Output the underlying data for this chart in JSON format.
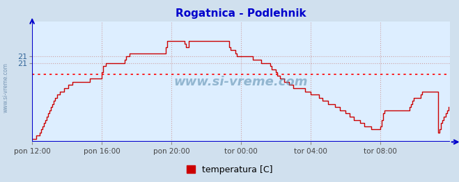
{
  "title": "Rogatnica - Podlehnik",
  "background_color": "#d0e0ee",
  "plot_bg_color": "#ddeeff",
  "line_color": "#cc0000",
  "avg_line_color": "#ff0000",
  "grid_color": "#cc9999",
  "grid_vcolor": "#cc9999",
  "title_color": "#0000cc",
  "legend_label": "temperatura [C]",
  "legend_color": "#cc0000",
  "ylim_min": 18.5,
  "ylim_max": 22.3,
  "avg_value": 20.65,
  "ytick_values": [
    21.2,
    21.0
  ],
  "ytick_labels": [
    "21",
    "21"
  ],
  "x_tick_labels": [
    "pon 12:00",
    "pon 16:00",
    "pon 20:00",
    "tor 00:00",
    "tor 04:00",
    "tor 08:00"
  ],
  "x_tick_positions": [
    0,
    48,
    96,
    144,
    192,
    240
  ],
  "total_points": 288,
  "temps": [
    18.6,
    18.6,
    18.6,
    18.7,
    18.7,
    18.8,
    18.9,
    19.0,
    19.1,
    19.2,
    19.3,
    19.4,
    19.5,
    19.6,
    19.7,
    19.8,
    19.9,
    20.0,
    20.0,
    20.1,
    20.1,
    20.1,
    20.2,
    20.2,
    20.2,
    20.3,
    20.3,
    20.3,
    20.4,
    20.4,
    20.4,
    20.4,
    20.4,
    20.4,
    20.4,
    20.4,
    20.4,
    20.4,
    20.4,
    20.4,
    20.5,
    20.5,
    20.5,
    20.5,
    20.5,
    20.5,
    20.5,
    20.5,
    20.7,
    20.9,
    20.9,
    21.0,
    21.0,
    21.0,
    21.0,
    21.0,
    21.0,
    21.0,
    21.0,
    21.0,
    21.0,
    21.0,
    21.0,
    21.0,
    21.1,
    21.2,
    21.2,
    21.3,
    21.3,
    21.3,
    21.3,
    21.3,
    21.3,
    21.3,
    21.3,
    21.3,
    21.3,
    21.3,
    21.3,
    21.3,
    21.3,
    21.3,
    21.3,
    21.3,
    21.3,
    21.3,
    21.3,
    21.3,
    21.3,
    21.3,
    21.3,
    21.3,
    21.5,
    21.7,
    21.7,
    21.7,
    21.7,
    21.7,
    21.7,
    21.7,
    21.7,
    21.7,
    21.7,
    21.7,
    21.7,
    21.6,
    21.5,
    21.5,
    21.7,
    21.7,
    21.7,
    21.7,
    21.7,
    21.7,
    21.7,
    21.7,
    21.7,
    21.7,
    21.7,
    21.7,
    21.7,
    21.7,
    21.7,
    21.7,
    21.7,
    21.7,
    21.7,
    21.7,
    21.7,
    21.7,
    21.7,
    21.7,
    21.7,
    21.7,
    21.7,
    21.7,
    21.5,
    21.4,
    21.4,
    21.4,
    21.3,
    21.2,
    21.2,
    21.2,
    21.2,
    21.2,
    21.2,
    21.2,
    21.2,
    21.2,
    21.2,
    21.2,
    21.1,
    21.1,
    21.1,
    21.1,
    21.1,
    21.1,
    21.0,
    21.0,
    21.0,
    21.0,
    21.0,
    21.0,
    20.9,
    20.8,
    20.8,
    20.8,
    20.7,
    20.6,
    20.6,
    20.5,
    20.5,
    20.5,
    20.4,
    20.4,
    20.4,
    20.3,
    20.3,
    20.3,
    20.2,
    20.2,
    20.2,
    20.2,
    20.2,
    20.2,
    20.2,
    20.2,
    20.1,
    20.1,
    20.1,
    20.1,
    20.0,
    20.0,
    20.0,
    20.0,
    20.0,
    20.0,
    19.9,
    19.9,
    19.8,
    19.8,
    19.8,
    19.8,
    19.7,
    19.7,
    19.7,
    19.7,
    19.7,
    19.6,
    19.6,
    19.6,
    19.5,
    19.5,
    19.5,
    19.5,
    19.4,
    19.4,
    19.4,
    19.3,
    19.3,
    19.3,
    19.2,
    19.2,
    19.2,
    19.2,
    19.1,
    19.1,
    19.1,
    19.0,
    19.0,
    19.0,
    19.0,
    19.0,
    18.9,
    18.9,
    18.9,
    18.9,
    18.9,
    18.9,
    19.0,
    19.2,
    19.4,
    19.5,
    19.5,
    19.5,
    19.5,
    19.5,
    19.5,
    19.5,
    19.5,
    19.5,
    19.5,
    19.5,
    19.5,
    19.5,
    19.5,
    19.5,
    19.5,
    19.5,
    19.6,
    19.7,
    19.8,
    19.9,
    19.9,
    19.9,
    19.9,
    19.9,
    20.0,
    20.1,
    20.1,
    20.1,
    20.1,
    20.1,
    20.1,
    20.1,
    20.1,
    20.1,
    20.1,
    20.1,
    18.8,
    18.9,
    19.1,
    19.2,
    19.3,
    19.4,
    19.5,
    19.6
  ]
}
